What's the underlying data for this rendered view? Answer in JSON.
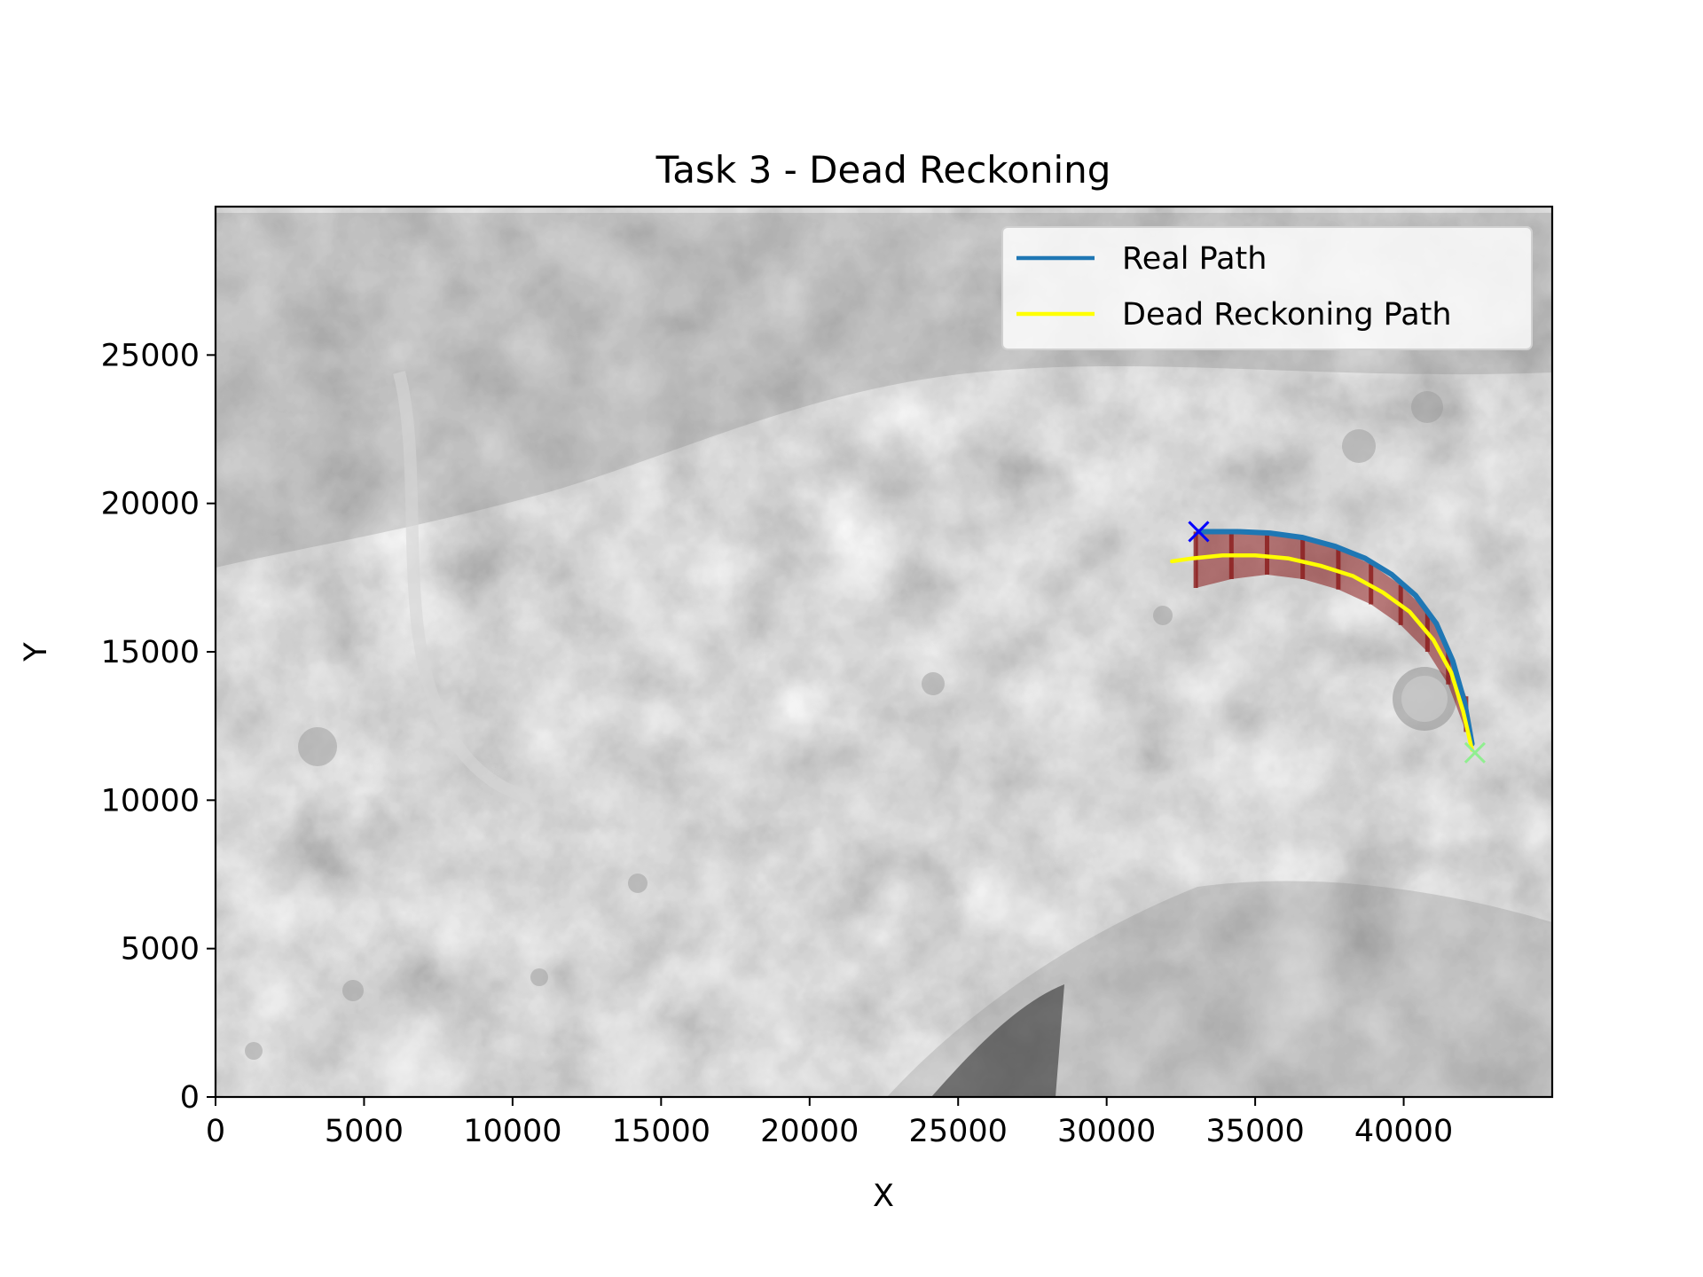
{
  "chart_data": {
    "type": "line",
    "title": "Task 3 - Dead Reckoning",
    "xlabel": "X",
    "ylabel": "Y",
    "xlim": [
      0,
      45000
    ],
    "ylim": [
      0,
      30000
    ],
    "xticks": [
      0,
      5000,
      10000,
      15000,
      20000,
      25000,
      30000,
      35000,
      40000
    ],
    "yticks": [
      0,
      5000,
      10000,
      15000,
      20000,
      25000
    ],
    "grid": false,
    "legend_position": "top-right",
    "background": "grayscale terrain image",
    "series": [
      {
        "name": "Real Path",
        "color": "#1f77b4",
        "x": [
          42300,
          42050,
          41650,
          41100,
          40400,
          39600,
          38700,
          37700,
          36600,
          35500,
          34400,
          33600,
          33100
        ],
        "y": [
          11900,
          13300,
          14700,
          15950,
          16900,
          17600,
          18150,
          18550,
          18850,
          19000,
          19050,
          19050,
          19050
        ]
      },
      {
        "name": "Dead Reckoning Path",
        "color": "#ffff00",
        "x": [
          42300,
          42000,
          41600,
          41000,
          40200,
          39300,
          38300,
          37200,
          36100,
          35000,
          33900,
          32900,
          32200
        ],
        "y": [
          11700,
          13000,
          14300,
          15400,
          16350,
          17000,
          17550,
          17900,
          18150,
          18250,
          18250,
          18150,
          18050
        ]
      }
    ],
    "uncertainty_band": {
      "color": "#8b1a1a",
      "x": [
        33000,
        34200,
        35400,
        36600,
        37800,
        38900,
        39900,
        40800,
        41500,
        42100
      ],
      "y_upper": [
        19050,
        19100,
        19000,
        18800,
        18450,
        17950,
        17250,
        16350,
        15100,
        13500
      ],
      "y_lower": [
        17150,
        17450,
        17600,
        17450,
        17100,
        16600,
        15900,
        15000,
        13900,
        12300
      ]
    },
    "markers": [
      {
        "x": 33100,
        "y": 19050,
        "symbol": "x",
        "color": "#0000ff"
      },
      {
        "x": 42400,
        "y": 11600,
        "symbol": "x",
        "color": "#90ee90"
      }
    ]
  }
}
